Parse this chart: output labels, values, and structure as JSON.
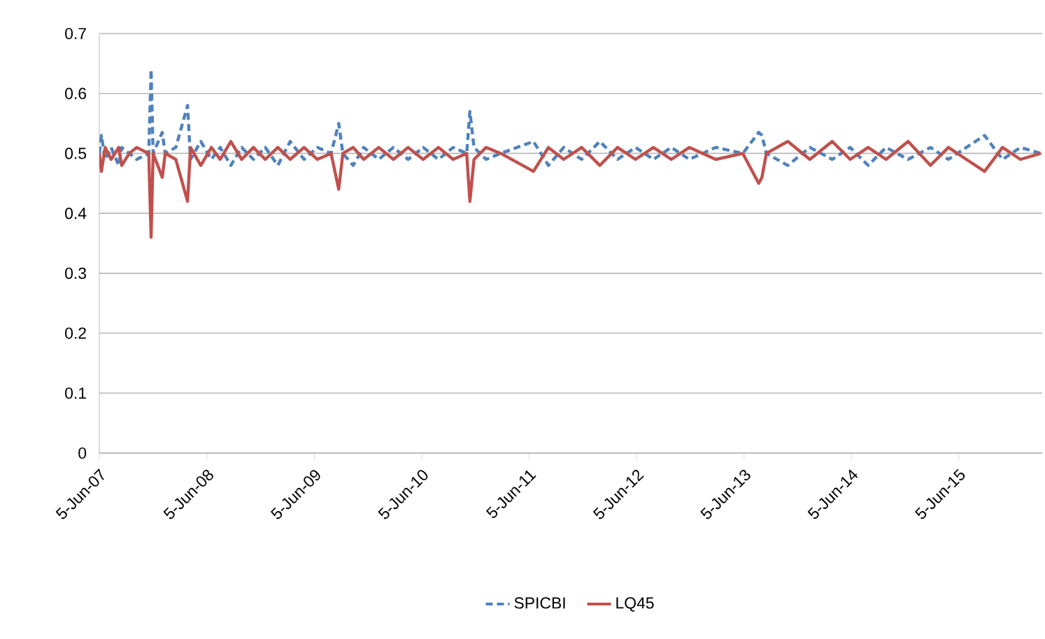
{
  "chart_data": {
    "type": "line",
    "x": [
      "2007-06-05",
      "2007-06-12",
      "2007-06-25",
      "2007-07-15",
      "2007-08-10",
      "2007-08-20",
      "2007-09-15",
      "2007-10-10",
      "2007-11-20",
      "2007-11-28",
      "2007-12-05",
      "2008-01-05",
      "2008-01-15",
      "2008-02-20",
      "2008-03-31",
      "2008-04-10",
      "2008-05-15",
      "2008-06-20",
      "2008-07-20",
      "2008-08-25",
      "2008-10-01",
      "2008-11-10",
      "2008-12-20",
      "2009-02-01",
      "2009-03-15",
      "2009-05-01",
      "2009-06-15",
      "2009-08-01",
      "2009-08-27",
      "2009-09-10",
      "2009-10-15",
      "2009-11-20",
      "2010-01-10",
      "2010-03-01",
      "2010-04-20",
      "2010-06-10",
      "2010-08-01",
      "2010-09-20",
      "2010-11-05",
      "2010-11-16",
      "2010-11-30",
      "2011-01-10",
      "2011-03-01",
      "2011-06-20",
      "2011-08-10",
      "2011-10-01",
      "2011-12-01",
      "2012-02-01",
      "2012-04-01",
      "2012-06-01",
      "2012-08-01",
      "2012-10-01",
      "2012-12-01",
      "2013-03-01",
      "2013-06-01",
      "2013-07-25",
      "2013-08-05",
      "2013-08-20",
      "2013-11-01",
      "2014-01-15",
      "2014-04-01",
      "2014-06-01",
      "2014-08-01",
      "2014-10-01",
      "2014-12-15",
      "2015-03-01",
      "2015-05-01",
      "2015-07-01",
      "2015-09-01",
      "2015-11-01",
      "2016-01-01",
      "2016-03-10"
    ],
    "series": [
      {
        "name": "SPICBI",
        "color": "#4f81bd",
        "line_style": "dashed",
        "values": [
          0.5,
          0.53,
          0.49,
          0.51,
          0.48,
          0.51,
          0.5,
          0.49,
          0.5,
          0.64,
          0.5,
          0.535,
          0.5,
          0.51,
          0.58,
          0.49,
          0.52,
          0.49,
          0.51,
          0.48,
          0.51,
          0.49,
          0.51,
          0.48,
          0.52,
          0.49,
          0.51,
          0.5,
          0.55,
          0.5,
          0.48,
          0.51,
          0.49,
          0.51,
          0.49,
          0.51,
          0.49,
          0.51,
          0.5,
          0.57,
          0.51,
          0.49,
          0.5,
          0.52,
          0.48,
          0.51,
          0.49,
          0.52,
          0.49,
          0.51,
          0.49,
          0.51,
          0.49,
          0.51,
          0.5,
          0.535,
          0.53,
          0.5,
          0.48,
          0.51,
          0.49,
          0.51,
          0.48,
          0.51,
          0.49,
          0.51,
          0.49,
          0.51,
          0.53,
          0.49,
          0.51,
          0.5
        ]
      },
      {
        "name": "LQ45",
        "color": "#c0504d",
        "line_style": "solid",
        "values": [
          0.5,
          0.47,
          0.51,
          0.49,
          0.51,
          0.48,
          0.5,
          0.51,
          0.5,
          0.36,
          0.5,
          0.46,
          0.5,
          0.49,
          0.42,
          0.51,
          0.48,
          0.51,
          0.49,
          0.52,
          0.49,
          0.51,
          0.49,
          0.51,
          0.49,
          0.51,
          0.49,
          0.5,
          0.44,
          0.5,
          0.51,
          0.49,
          0.51,
          0.49,
          0.51,
          0.49,
          0.51,
          0.49,
          0.5,
          0.42,
          0.49,
          0.51,
          0.5,
          0.47,
          0.51,
          0.49,
          0.51,
          0.48,
          0.51,
          0.49,
          0.51,
          0.49,
          0.51,
          0.49,
          0.5,
          0.45,
          0.46,
          0.5,
          0.52,
          0.49,
          0.52,
          0.49,
          0.51,
          0.49,
          0.52,
          0.48,
          0.51,
          0.49,
          0.47,
          0.51,
          0.49,
          0.5
        ]
      }
    ],
    "xlim": [
      "2007-06-05",
      "2016-03-15"
    ],
    "xticks": [
      {
        "value": "2007-06-05",
        "label": "5-Jun-07"
      },
      {
        "value": "2008-06-05",
        "label": "5-Jun-08"
      },
      {
        "value": "2009-06-05",
        "label": "5-Jun-09"
      },
      {
        "value": "2010-06-05",
        "label": "5-Jun-10"
      },
      {
        "value": "2011-06-05",
        "label": "5-Jun-11"
      },
      {
        "value": "2012-06-05",
        "label": "5-Jun-12"
      },
      {
        "value": "2013-06-05",
        "label": "5-Jun-13"
      },
      {
        "value": "2014-06-05",
        "label": "5-Jun-14"
      },
      {
        "value": "2015-06-05",
        "label": "5-Jun-15"
      }
    ],
    "ylim": [
      0,
      0.7
    ],
    "yticks": [
      0,
      0.1,
      0.2,
      0.3,
      0.4,
      0.5,
      0.6,
      0.7
    ],
    "grid": "y",
    "legend": "bottom",
    "marker": "none"
  }
}
